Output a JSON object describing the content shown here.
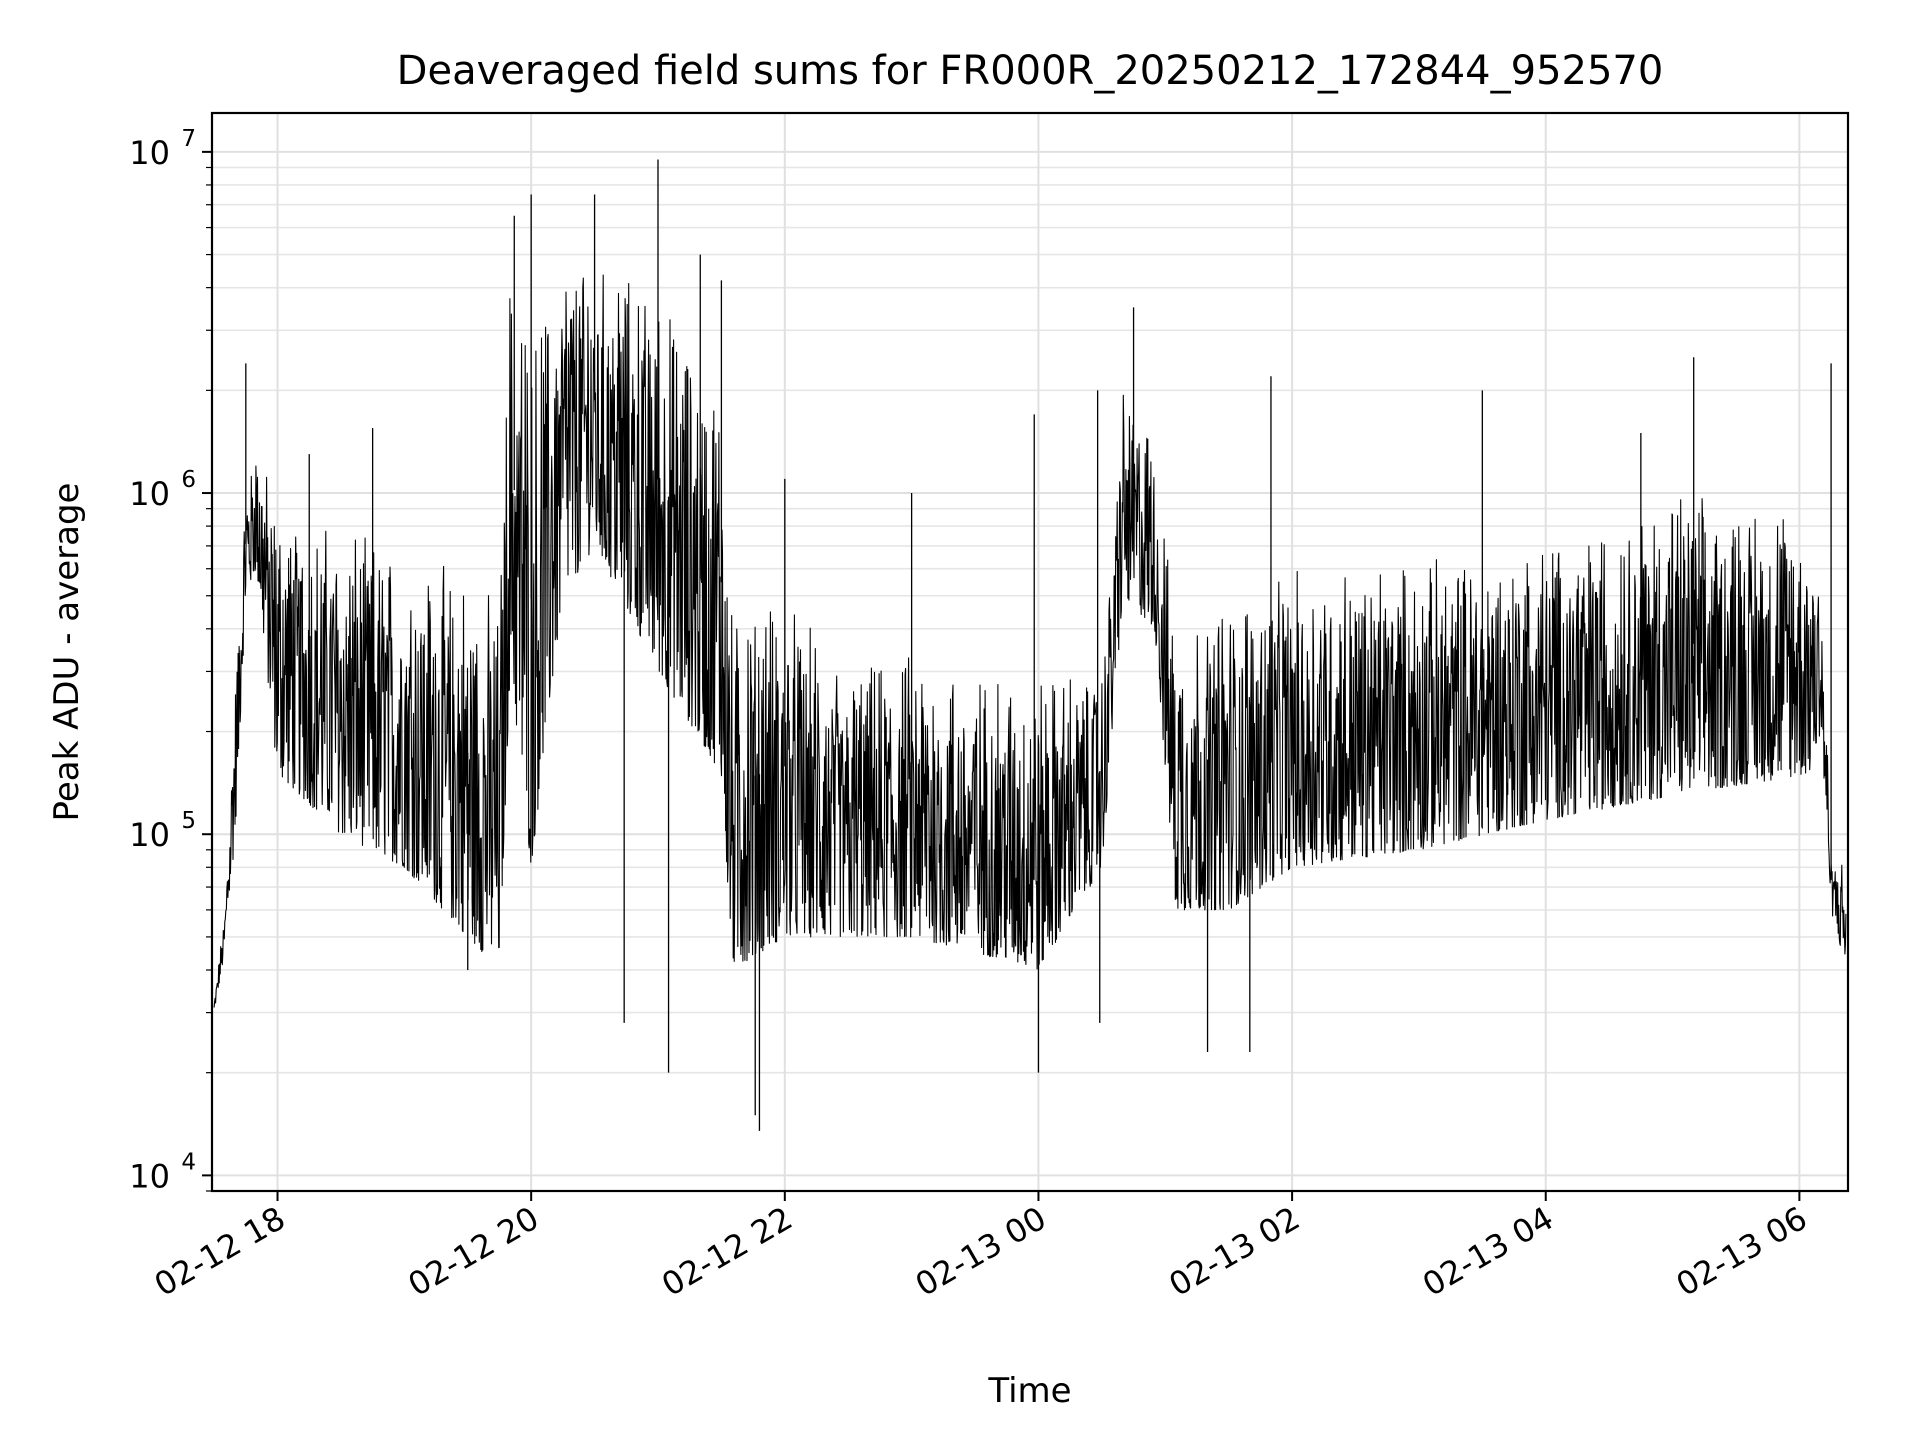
{
  "chart_data": {
    "type": "line",
    "title": "Deaveraged field sums for FR000R_20250212_172844_952570",
    "xlabel": "Time",
    "ylabel": "Peak ADU - average",
    "yscale": "log",
    "ylim": [
      9000,
      13000000
    ],
    "xlim": [
      "2025-02-12 17:29",
      "2025-02-13 06:23"
    ],
    "grid": true,
    "x_ticks": [
      {
        "label": "02-12 18",
        "t": "2025-02-12 18:00"
      },
      {
        "label": "02-12 20",
        "t": "2025-02-12 20:00"
      },
      {
        "label": "02-12 22",
        "t": "2025-02-12 22:00"
      },
      {
        "label": "02-13 00",
        "t": "2025-02-13 00:00"
      },
      {
        "label": "02-13 02",
        "t": "2025-02-13 02:00"
      },
      {
        "label": "02-13 04",
        "t": "2025-02-13 04:00"
      },
      {
        "label": "02-13 06",
        "t": "2025-02-13 06:00"
      }
    ],
    "y_ticks": [
      {
        "base": "10",
        "exp": "4",
        "value": 10000
      },
      {
        "base": "10",
        "exp": "5",
        "value": 100000
      },
      {
        "base": "10",
        "exp": "6",
        "value": 1000000
      },
      {
        "base": "10",
        "exp": "7",
        "value": 10000000
      }
    ],
    "series": [
      {
        "color": "#000000",
        "envelope": [
          {
            "t": "2025-02-12 17:30",
            "low": 30000,
            "high": 32000
          },
          {
            "t": "2025-02-12 17:35",
            "low": 45000,
            "high": 60000
          },
          {
            "t": "2025-02-12 17:40",
            "low": 100000,
            "high": 300000
          },
          {
            "t": "2025-02-12 17:45",
            "low": 500000,
            "high": 1000000
          },
          {
            "t": "2025-02-12 17:50",
            "low": 600000,
            "high": 1500000
          },
          {
            "t": "2025-02-12 18:00",
            "low": 150000,
            "high": 900000
          },
          {
            "t": "2025-02-12 18:30",
            "low": 100000,
            "high": 800000
          },
          {
            "t": "2025-02-12 19:00",
            "low": 80000,
            "high": 700000
          },
          {
            "t": "2025-02-12 19:30",
            "low": 50000,
            "high": 600000
          },
          {
            "t": "2025-02-12 19:45",
            "low": 40000,
            "high": 500000
          },
          {
            "t": "2025-02-12 19:50",
            "low": 300000,
            "high": 5000000
          },
          {
            "t": "2025-02-12 20:00",
            "low": 80000,
            "high": 3000000
          },
          {
            "t": "2025-02-12 20:15",
            "low": 500000,
            "high": 5000000
          },
          {
            "t": "2025-02-12 20:30",
            "low": 700000,
            "high": 5000000
          },
          {
            "t": "2025-02-12 21:00",
            "low": 300000,
            "high": 4000000
          },
          {
            "t": "2025-02-12 21:30",
            "low": 150000,
            "high": 2000000
          },
          {
            "t": "2025-02-12 21:35",
            "low": 40000,
            "high": 500000
          },
          {
            "t": "2025-02-12 22:00",
            "low": 50000,
            "high": 500000
          },
          {
            "t": "2025-02-12 22:30",
            "low": 50000,
            "high": 300000
          },
          {
            "t": "2025-02-12 23:00",
            "low": 50000,
            "high": 350000
          },
          {
            "t": "2025-02-12 23:30",
            "low": 45000,
            "high": 300000
          },
          {
            "t": "2025-02-13 00:00",
            "low": 40000,
            "high": 300000
          },
          {
            "t": "2025-02-13 00:30",
            "low": 80000,
            "high": 300000
          },
          {
            "t": "2025-02-13 00:40",
            "low": 500000,
            "high": 2000000
          },
          {
            "t": "2025-02-13 00:55",
            "low": 400000,
            "high": 1500000
          },
          {
            "t": "2025-02-13 01:05",
            "low": 60000,
            "high": 400000
          },
          {
            "t": "2025-02-13 01:30",
            "low": 60000,
            "high": 500000
          },
          {
            "t": "2025-02-13 02:00",
            "low": 80000,
            "high": 600000
          },
          {
            "t": "2025-02-13 03:00",
            "low": 90000,
            "high": 650000
          },
          {
            "t": "2025-02-13 04:00",
            "low": 110000,
            "high": 750000
          },
          {
            "t": "2025-02-13 05:00",
            "low": 130000,
            "high": 1000000
          },
          {
            "t": "2025-02-13 06:05",
            "low": 150000,
            "high": 900000
          },
          {
            "t": "2025-02-13 06:10",
            "low": 200000,
            "high": 700000
          },
          {
            "t": "2025-02-13 06:15",
            "low": 60000,
            "high": 90000
          },
          {
            "t": "2025-02-13 06:22",
            "low": 40000,
            "high": 80000
          }
        ],
        "spikes": [
          {
            "t": "2025-02-12 17:45",
            "v": 2400000
          },
          {
            "t": "2025-02-12 18:15",
            "v": 1300000
          },
          {
            "t": "2025-02-12 18:45",
            "v": 1550000
          },
          {
            "t": "2025-02-12 19:30",
            "v": 40000
          },
          {
            "t": "2025-02-12 19:52",
            "v": 6500000
          },
          {
            "t": "2025-02-12 20:00",
            "v": 7500000
          },
          {
            "t": "2025-02-12 20:30",
            "v": 7500000
          },
          {
            "t": "2025-02-12 20:44",
            "v": 28000
          },
          {
            "t": "2025-02-12 21:00",
            "v": 9500000
          },
          {
            "t": "2025-02-12 21:05",
            "v": 20000
          },
          {
            "t": "2025-02-12 21:20",
            "v": 5000000
          },
          {
            "t": "2025-02-12 21:30",
            "v": 4200000
          },
          {
            "t": "2025-02-12 21:48",
            "v": 13500
          },
          {
            "t": "2025-02-12 21:46",
            "v": 15000
          },
          {
            "t": "2025-02-12 22:00",
            "v": 1100000
          },
          {
            "t": "2025-02-12 23:00",
            "v": 1000000
          },
          {
            "t": "2025-02-12 23:58",
            "v": 1700000
          },
          {
            "t": "2025-02-13 00:00",
            "v": 20000
          },
          {
            "t": "2025-02-13 00:28",
            "v": 2000000
          },
          {
            "t": "2025-02-13 00:29",
            "v": 28000
          },
          {
            "t": "2025-02-13 00:45",
            "v": 3500000
          },
          {
            "t": "2025-02-13 01:20",
            "v": 23000
          },
          {
            "t": "2025-02-13 01:40",
            "v": 23000
          },
          {
            "t": "2025-02-13 01:50",
            "v": 2200000
          },
          {
            "t": "2025-02-13 03:30",
            "v": 2000000
          },
          {
            "t": "2025-02-13 04:45",
            "v": 1500000
          },
          {
            "t": "2025-02-13 05:10",
            "v": 2500000
          },
          {
            "t": "2025-02-13 06:15",
            "v": 2400000
          }
        ]
      }
    ]
  }
}
